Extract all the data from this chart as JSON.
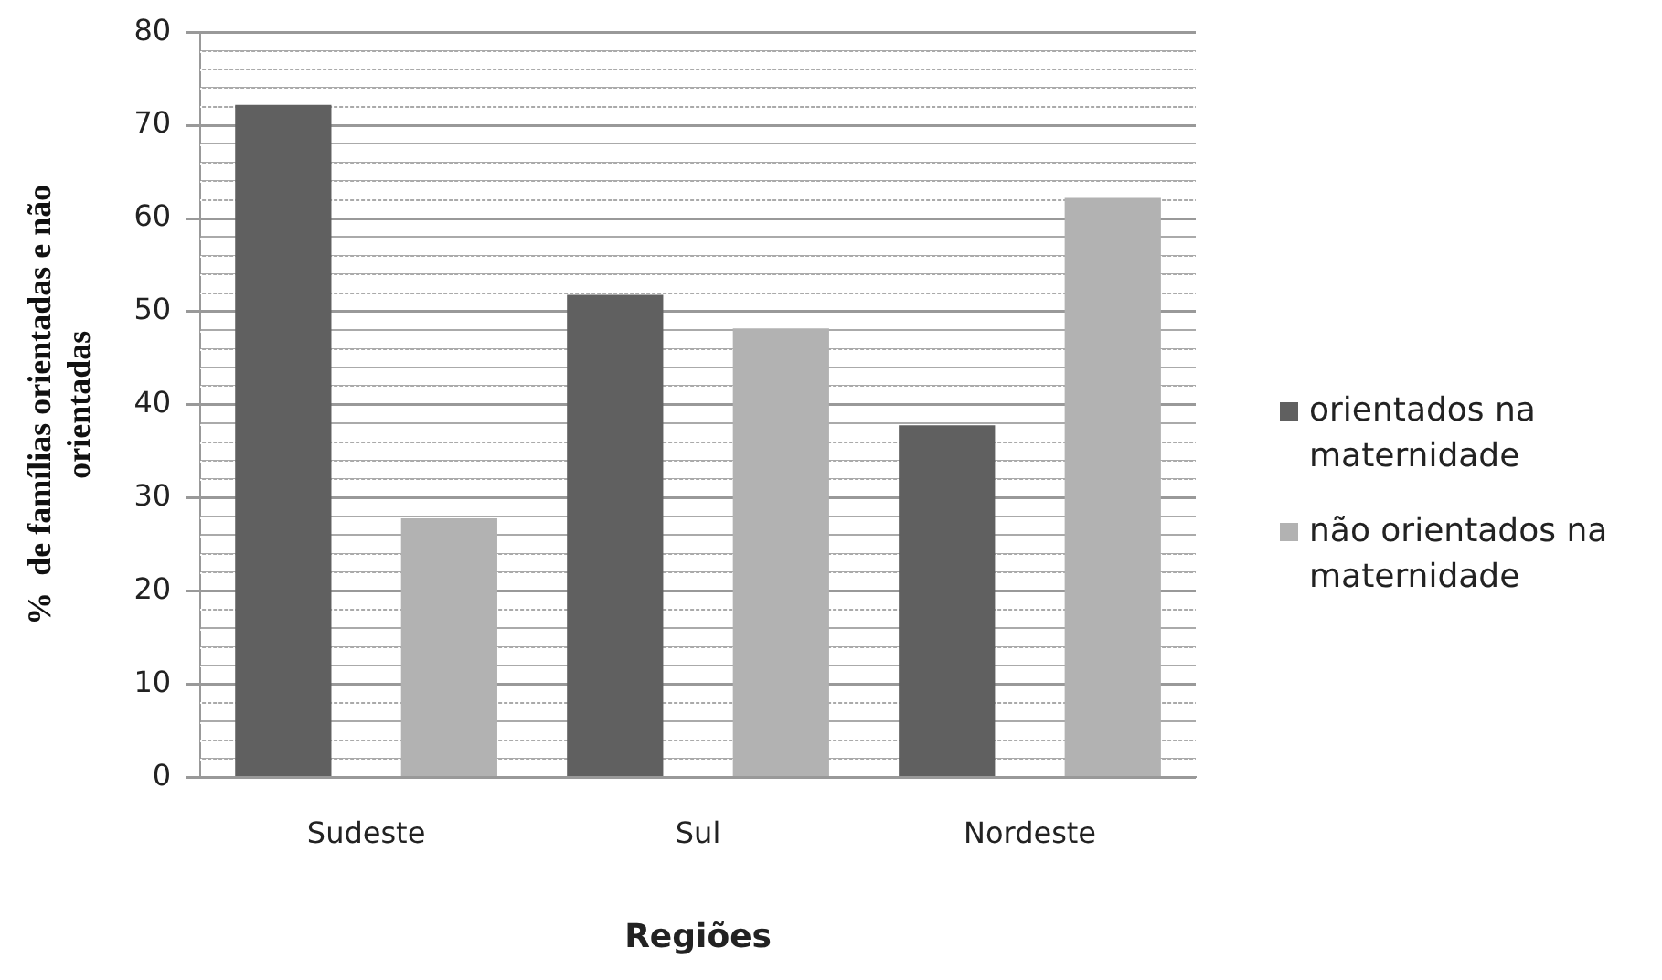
{
  "chart_data": {
    "type": "bar",
    "xlabel": "Regiões",
    "ylabel": "%  de famílias orientadas e não orientadas",
    "categories": [
      "Sudeste",
      "Sul",
      "Nordeste"
    ],
    "series": [
      {
        "name": "orientados na maternidade",
        "color": "#606060",
        "values": [
          72.2,
          51.8,
          37.8
        ]
      },
      {
        "name": "não orientados na maternidade",
        "color": "#b2b2b2",
        "values": [
          27.8,
          48.2,
          62.2
        ]
      }
    ],
    "ylim": [
      0,
      80
    ],
    "yticks": [
      0,
      {
        "value": 2,
        "label": null
      },
      {
        "value": 4,
        "label": null
      },
      {
        "value": 6,
        "label": null
      },
      {
        "value": 8,
        "label": null
      },
      10,
      {
        "value": 12,
        "label": null
      },
      {
        "value": 14,
        "label": null
      },
      {
        "value": 16,
        "label": null
      },
      {
        "value": 18,
        "label": null
      },
      20,
      {
        "value": 22,
        "label": null
      },
      {
        "value": 24,
        "label": null
      },
      {
        "value": 26,
        "label": null
      },
      {
        "value": 28,
        "label": null
      },
      30,
      {
        "value": 32,
        "label": null
      },
      {
        "value": 34,
        "label": null
      },
      {
        "value": 36,
        "label": null
      },
      {
        "value": 38,
        "label": null
      },
      40,
      {
        "value": 42,
        "label": null
      },
      {
        "value": 44,
        "label": null
      },
      {
        "value": 46,
        "label": null
      },
      {
        "value": 48,
        "label": null
      },
      50,
      {
        "value": 52,
        "label": null
      },
      {
        "value": 54,
        "label": null
      },
      {
        "value": 56,
        "label": null
      },
      {
        "value": 58,
        "label": null
      },
      60,
      {
        "value": 62,
        "label": null
      },
      {
        "value": 64,
        "label": null
      },
      {
        "value": 66,
        "label": null
      },
      {
        "value": 68,
        "label": null
      },
      70,
      {
        "value": 72,
        "label": null
      },
      {
        "value": 74,
        "label": null
      },
      {
        "value": 76,
        "label": null
      },
      {
        "value": 78,
        "label": null
      },
      80
    ],
    "grid": "y",
    "legend": "right"
  }
}
